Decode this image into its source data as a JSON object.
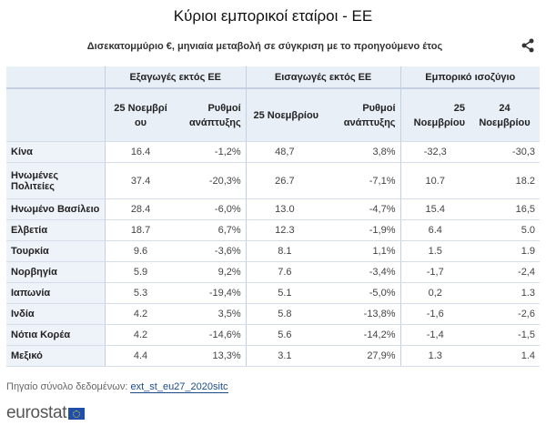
{
  "title": "Κύριοι εμπορικοί εταίροι - ΕΕ",
  "subtitle": "Δισεκατομμύριο €, μηνιαία μεταβολή σε σύγκριση με το προηγούμενο έτος",
  "share_icon": "share-icon",
  "groups": [
    "Εξαγωγές εκτός ΕΕ",
    "Εισαγωγές εκτός ΕΕ",
    "Εμπορικό ισοζύγιο"
  ],
  "subheaders": [
    "25 Νοεμβρί ου",
    "Ρυθμοί ανάπτυξης",
    "25 Νοεμβρίου",
    "Ρυθμοί ανάπτυξης",
    "25 Νοεμβρίου",
    "24 Νοεμβρίου"
  ],
  "rows": [
    [
      "Κίνα",
      "16.4",
      "-1,2%",
      "48,7",
      "3,8%",
      "-32,3",
      "-30,3"
    ],
    [
      "Ηνωμένες Πολιτείες",
      "37.4",
      "-20,3%",
      "26.7",
      "-7,1%",
      "10.7",
      "18.2"
    ],
    [
      "Ηνωμένο Βασίλειο",
      "28.4",
      "-6,0%",
      "13.0",
      "-4,7%",
      "15.4",
      "16,5"
    ],
    [
      "Ελβετία",
      "18.7",
      "6,7%",
      "12.3",
      "-1,9%",
      "6.4",
      "5.0"
    ],
    [
      "Τουρκία",
      "9.6",
      "-3,6%",
      "8.1",
      "1,1%",
      "1.5",
      "1.9"
    ],
    [
      "Νορβηγία",
      "5.9",
      "9,2%",
      "7.6",
      "-3,4%",
      "-1,7",
      "-2,4"
    ],
    [
      "Ιαπωνία",
      "5.3",
      "-19,4%",
      "5.1",
      "-5,0%",
      "0,2",
      "1.3"
    ],
    [
      "Ινδία",
      "4.2",
      "3,5%",
      "5.8",
      "-13,8%",
      "-1,6",
      "-2,6"
    ],
    [
      "Νότια Κορέα",
      "4.2",
      "-14,6%",
      "5.6",
      "-14,2%",
      "-1,4",
      "-1,5"
    ],
    [
      "Μεξικό",
      "4.4",
      "13,3%",
      "3.1",
      "27,9%",
      "1.3",
      "1.4"
    ]
  ],
  "source_label": "Πηγαίο σύνολο δεδομένων:",
  "source_link": "ext_st_eu27_2020sitc",
  "logo": "eurostat"
}
